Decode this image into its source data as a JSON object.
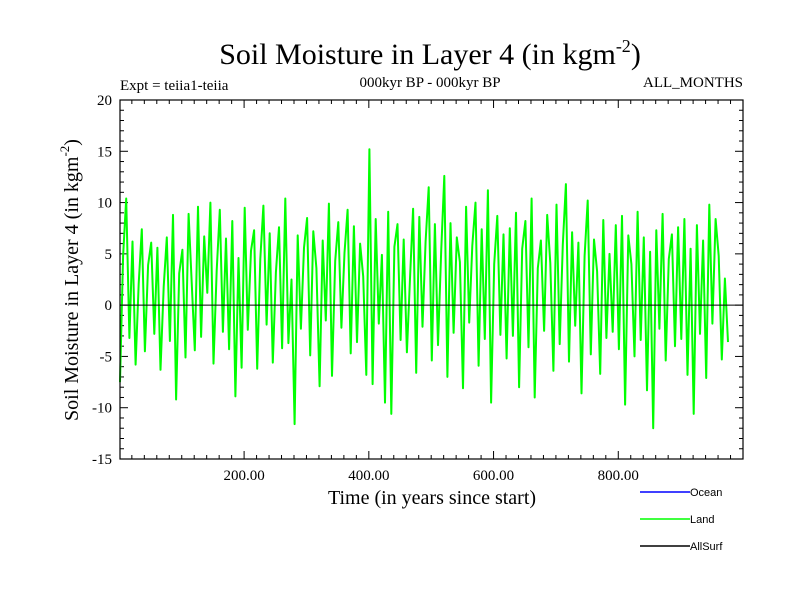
{
  "chart_data": {
    "type": "line",
    "title": "Soil Moisture in Layer 4 (in kgm",
    "title_sup": "-2",
    "title_close": ")",
    "subtitle_left": "Expt = teiia1-teiia",
    "subtitle_center": "000kyr BP - 000kyr BP",
    "subtitle_right": "ALL_MONTHS",
    "xlabel": "Time (in years since start)",
    "ylabel": "Soil Moisture in Layer 4 (in kgm",
    "ylabel_sup": "-2",
    "ylabel_close": ")",
    "xlim": [
      1,
      1000
    ],
    "ylim": [
      -15,
      20
    ],
    "x_ticks": [
      200,
      400,
      600,
      800
    ],
    "x_tick_labels": [
      "200.00",
      "400.00",
      "600.00",
      "800.00"
    ],
    "y_ticks": [
      -15,
      -10,
      -5,
      0,
      5,
      10,
      15,
      20
    ],
    "y_tick_labels": [
      "-15",
      "-10",
      "-5",
      "0",
      "5",
      "10",
      "15",
      "20"
    ],
    "grid": false,
    "zero_line": true,
    "legend_position": "bottom-right",
    "series": [
      {
        "name": "Ocean",
        "color": "#0000ff",
        "values": []
      },
      {
        "name": "Land",
        "color": "#00ff00",
        "x_start": 1,
        "x_step": 5,
        "values": [
          -7.5,
          4.8,
          10.4,
          -3.2,
          6.2,
          -5.8,
          2.1,
          7.4,
          -4.5,
          3.9,
          6.1,
          -2.8,
          5.6,
          -6.3,
          1.8,
          6.6,
          -3.5,
          8.8,
          -9.2,
          3.1,
          5.4,
          -5.1,
          8.9,
          2.2,
          -4.4,
          9.6,
          -3.1,
          6.7,
          1.2,
          10.0,
          -5.7,
          3.4,
          9.3,
          -2.6,
          6.5,
          -4.3,
          8.2,
          -8.9,
          4.6,
          -6.1,
          9.5,
          -2.4,
          5.3,
          7.3,
          -6.2,
          4.5,
          9.7,
          -1.9,
          7.0,
          -5.6,
          3.2,
          7.6,
          -4.2,
          10.4,
          -3.7,
          2.5,
          -11.6,
          6.8,
          -2.3,
          5.6,
          8.5,
          -4.9,
          7.2,
          3.6,
          -7.9,
          6.3,
          -1.5,
          9.9,
          -6.9,
          4.3,
          8.1,
          -2.2,
          5.1,
          9.3,
          -4.7,
          7.7,
          -3.6,
          6.0,
          2.8,
          -6.8,
          15.2,
          -7.7,
          8.4,
          -1.8,
          4.9,
          -9.5,
          9.1,
          -10.6,
          5.7,
          7.9,
          -3.4,
          6.4,
          -4.6,
          2.6,
          9.4,
          -6.6,
          8.6,
          -2.1,
          6.2,
          11.5,
          -5.4,
          7.9,
          -3.9,
          5.3,
          12.6,
          -7.0,
          8.0,
          -2.7,
          6.6,
          4.2,
          -8.1,
          9.6,
          -1.7,
          5.8,
          10.0,
          -5.9,
          7.4,
          -3.3,
          11.2,
          -9.5,
          4.0,
          8.7,
          -2.9,
          6.9,
          -5.2,
          7.5,
          -3.0,
          9.0,
          -8.0,
          5.5,
          8.2,
          -4.1,
          10.4,
          -9.0,
          3.6,
          6.3,
          -2.5,
          8.8,
          4.1,
          -6.4,
          9.8,
          -3.8,
          5.9,
          11.8,
          -5.5,
          7.1,
          -2.0,
          6.1,
          -8.6,
          4.8,
          10.2,
          -4.8,
          6.4,
          3.3,
          -6.7,
          8.3,
          -3.2,
          5.0,
          -2.6,
          7.8,
          -4.3,
          8.7,
          -9.7,
          6.8,
          4.0,
          -5.0,
          9.1,
          -3.4,
          6.6,
          -8.3,
          5.2,
          -12.0,
          7.3,
          -2.3,
          8.9,
          -5.4,
          4.5,
          6.9,
          -4.0,
          7.6,
          -3.3,
          8.4,
          -6.8,
          5.5,
          -10.6,
          7.8,
          -2.8,
          6.3,
          -7.1,
          9.8,
          -1.8,
          8.4,
          4.8,
          -5.3,
          2.6,
          -3.6
        ]
      },
      {
        "name": "AllSurf",
        "color": "#000000",
        "values": []
      }
    ]
  }
}
